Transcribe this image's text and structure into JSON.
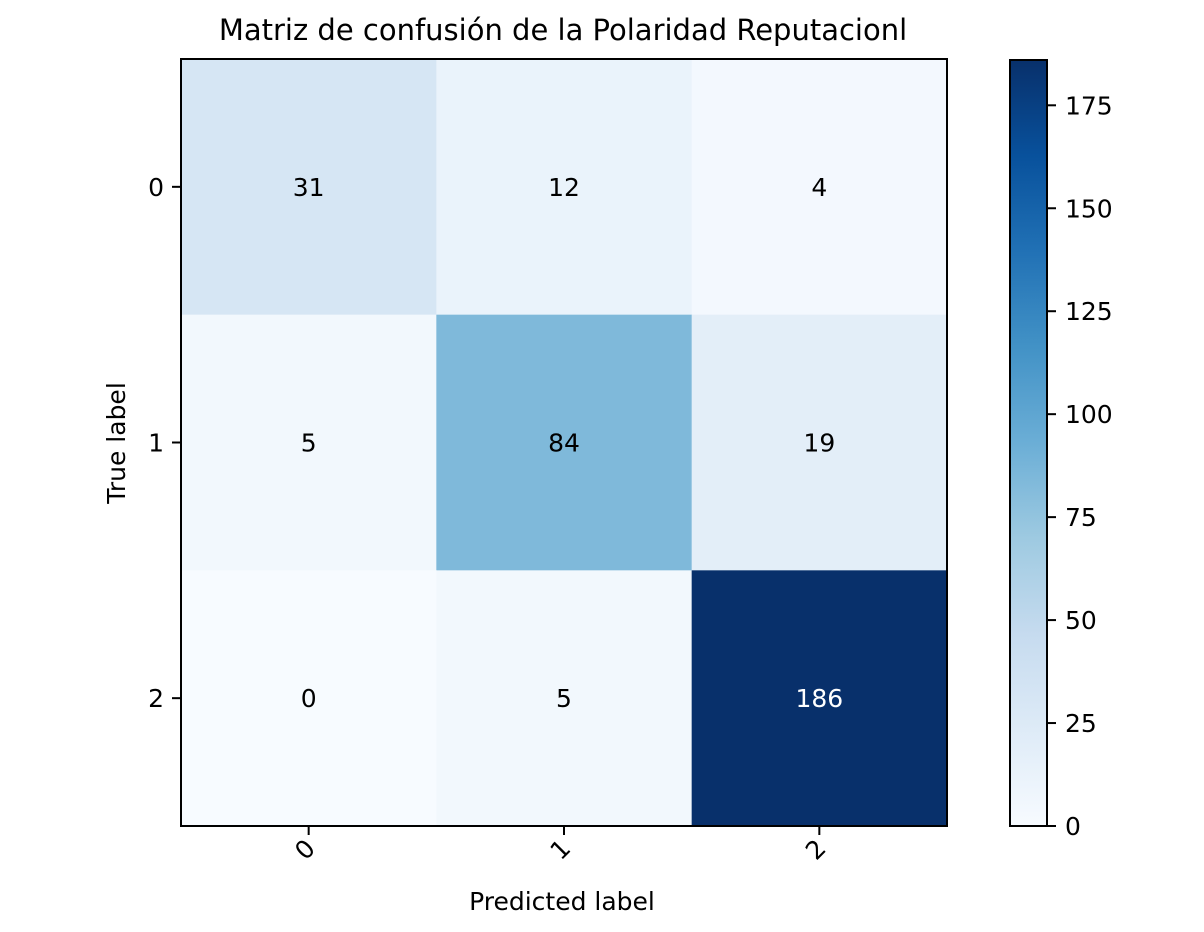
{
  "chart_data": {
    "type": "heatmap",
    "title": "Matriz de confusión de la Polaridad Reputacionl",
    "xlabel": "Predicted label",
    "ylabel": "True label",
    "x_categories": [
      "0",
      "1",
      "2"
    ],
    "y_categories": [
      "0",
      "1",
      "2"
    ],
    "values": [
      [
        31,
        12,
        4
      ],
      [
        5,
        84,
        19
      ],
      [
        0,
        5,
        186
      ]
    ],
    "colormap": "Blues",
    "color_range": [
      0,
      186
    ],
    "colorbar_ticks": [
      0,
      25,
      50,
      75,
      100,
      125,
      150,
      175
    ],
    "colorbar_tick_labels": [
      "0",
      "25",
      "50",
      "75",
      "100",
      "125",
      "150",
      "175"
    ],
    "colorbar_placement": "right",
    "x_tick_rotation_deg": 45,
    "grid": false
  }
}
